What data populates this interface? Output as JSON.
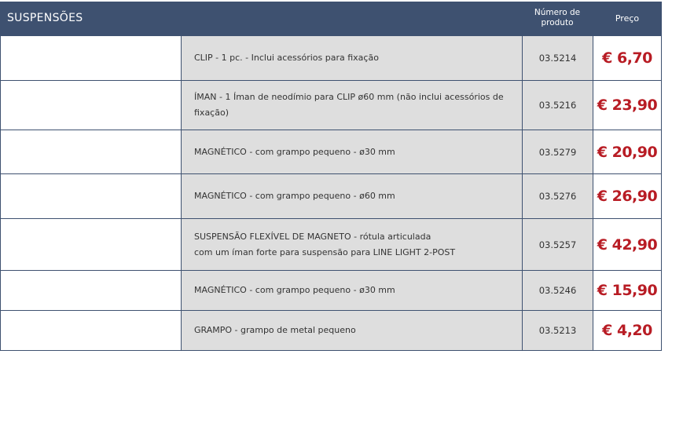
{
  "header": {
    "title": "SUSPENSÕES",
    "col_number": "Número de produto",
    "col_number_l1": "Número de",
    "col_number_l2": "produto",
    "col_price": "Preço"
  },
  "colors": {
    "header": "#3e5170",
    "price": "#b81c24",
    "cell": "#dedede"
  },
  "rows": [
    {
      "desc": "CLIP - 1 pc. - Inclui acessórios para fixação",
      "desc2": "",
      "number": "03.5214",
      "price": "€ 6,70"
    },
    {
      "desc": "ÍMAN - 1 Íman de neodímio para CLIP ø60 mm (não inclui acessórios de fixação)",
      "desc2": "",
      "number": "03.5216",
      "price": "€ 23,90"
    },
    {
      "desc": "MAGNÉTICO - com grampo pequeno - ø30 mm",
      "desc2": "",
      "number": "03.5279",
      "price": "€ 20,90"
    },
    {
      "desc": "MAGNÉTICO - com grampo pequeno - ø60 mm",
      "desc2": "",
      "number": "03.5276",
      "price": "€ 26,90"
    },
    {
      "desc": "SUSPENSÃO FLEXÍVEL DE MAGNETO - rótula articulada",
      "desc2": "com um íman forte para suspensão para  LINE LIGHT 2-POST",
      "number": "03.5257",
      "price": "€ 42,90"
    },
    {
      "desc": "MAGNÉTICO - com grampo pequeno - ø30 mm",
      "desc2": "",
      "number": "03.5246",
      "price": "€ 15,90"
    },
    {
      "desc": "GRAMPO - grampo de metal pequeno",
      "desc2": "",
      "number": "03.5213",
      "price": "€ 4,20"
    }
  ]
}
